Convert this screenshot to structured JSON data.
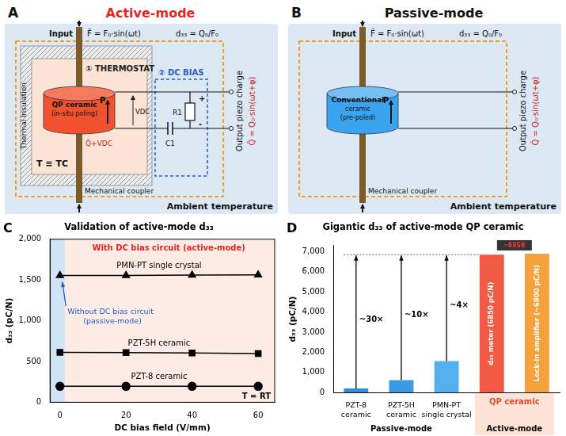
{
  "diagrams": {
    "A": {
      "letter": "A",
      "title": "Active-mode",
      "input": "Input",
      "force": "F̃ = F₀·sin(ωt)",
      "d33": "d₃₃ = Q₀/F₀",
      "thermostat": "① THERMOSTAT",
      "dc_bias": "② DC BIAS",
      "insulation": "Thermal insulation",
      "ceramic": [
        "QP ceramic",
        "(in-situ poling)"
      ],
      "polarization": "P",
      "vdc": "VDC",
      "resistor": "R1",
      "capacitor": "C1",
      "plus": "+",
      "minus": "-",
      "temperature": "T ≡ TC",
      "charge": "Q̃+VDC",
      "coupler": "Mechanical coupler",
      "output": "Output piezo charge",
      "output_formula": "Q̃ = Q₀·sin(ωt+φ)",
      "ambient": "Ambient temperature"
    },
    "B": {
      "letter": "B",
      "title": "Passive-mode",
      "input": "Input",
      "force": "F̃ = F₀·sin(ωt)",
      "d33": "d₃₃ = Q₀/F₀",
      "ceramic": [
        "Conventional",
        "ceramic",
        "(pre-poled)"
      ],
      "polarization": "P",
      "coupler": "Mechanical coupler",
      "output": "Output piezo charge",
      "output_formula": "Q̃ = Q₀·sin(ωt+φ)",
      "ambient": "Ambient temperature"
    }
  },
  "chart_data": [
    {
      "type": "line",
      "panel_label": "C",
      "title": "Validation of active-mode d₃₃",
      "x_label": "DC bias field (V/mm)",
      "y_label": "d₃₃ (pC/N)",
      "x": [
        0,
        20,
        40,
        60
      ],
      "series": [
        {
          "name": "PMN-PT single crystal",
          "color": "#000000",
          "marker": "triangle",
          "values": [
            1555,
            1555,
            1560,
            1562
          ]
        },
        {
          "name": "PZT-5H ceramic",
          "color": "#000000",
          "marker": "square",
          "values": [
            612,
            610,
            605,
            598
          ]
        },
        {
          "name": "PZT-8 ceramic",
          "color": "#000000",
          "marker": "circle",
          "values": [
            195,
            195,
            195,
            195
          ]
        }
      ],
      "xlim": [
        -3,
        65
      ],
      "xticks": [
        0,
        20,
        40,
        60
      ],
      "ylim": [
        0,
        2000
      ],
      "yticks": [
        0,
        500,
        1000,
        1500,
        2000
      ],
      "grid": false,
      "annotations": {
        "active": "With DC bias circuit (active-mode)",
        "passive": "Without DC bias circuit (passive-mode)",
        "temperature": "T = RT"
      }
    },
    {
      "type": "bar",
      "panel_label": "D",
      "title": "Gigantic d₃₃ of active-mode QP ceramic",
      "y_label": "d₃₃ (pC/N)",
      "categories": [
        "PZT-8 ceramic",
        "PZT-5H ceramic",
        "PMN-PT single crystal",
        null,
        null
      ],
      "values": [
        200,
        620,
        1560,
        6850,
        6900
      ],
      "colors": [
        "#2f8fdc",
        "#3a9be5",
        "#55b0f0",
        "#f25a45",
        "#f6a23c"
      ],
      "ylim": [
        0,
        7300
      ],
      "yticks": [
        0,
        1000,
        2000,
        3000,
        4000,
        5000,
        6000,
        7000
      ],
      "grid": false,
      "data_labels": true,
      "value_labels": [
        null,
        null,
        null,
        "d₃₃ meter (6850 pC/N)",
        "Lock-in amplifier (~6900 pC/N)"
      ],
      "annotations": {
        "ratios": [
          "~30×",
          "~10×",
          "~4×"
        ],
        "meter": "~6850",
        "group_labels": [
          "Passive-mode",
          "Active-mode"
        ],
        "qp_label": "QP ceramic"
      }
    }
  ]
}
